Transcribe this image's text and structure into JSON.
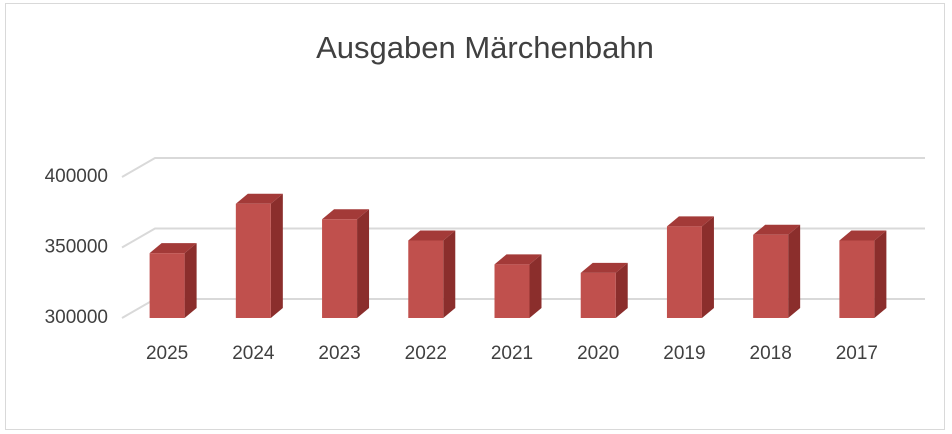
{
  "chart_data": {
    "type": "bar3d",
    "title": "Ausgaben Märchenbahn",
    "categories": [
      "2025",
      "2024",
      "2023",
      "2022",
      "2021",
      "2020",
      "2019",
      "2018",
      "2017"
    ],
    "values": [
      346000,
      381000,
      370000,
      355000,
      338000,
      332000,
      365000,
      359000,
      355000
    ],
    "color": "#c0504d",
    "ylim": [
      300000,
      400000
    ],
    "yticks": [
      300000,
      350000,
      400000
    ],
    "grid": true
  }
}
